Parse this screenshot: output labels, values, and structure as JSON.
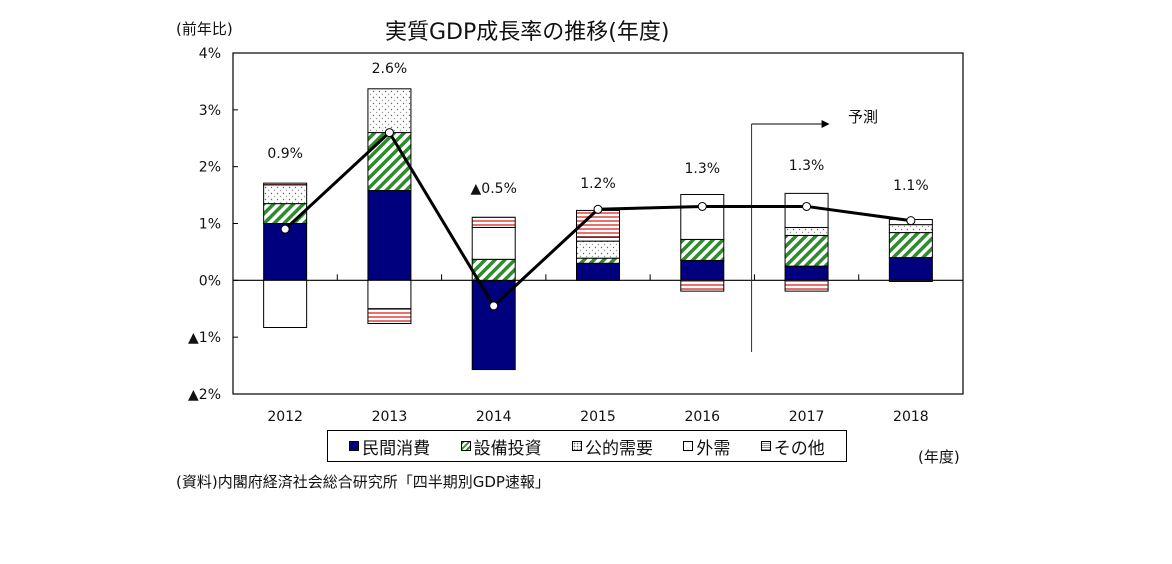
{
  "chart_data": {
    "type": "bar",
    "stacked": true,
    "title": "実質GDP成長率の推移(年度)",
    "ylabel": "(前年比)",
    "xlabel": "(年度)",
    "ylim": [
      -2,
      4
    ],
    "yticks": [
      4,
      3,
      2,
      1,
      0,
      -1,
      -2
    ],
    "ytick_labels": [
      "4%",
      "3%",
      "2%",
      "1%",
      "0%",
      "▲1%",
      "▲2%"
    ],
    "categories": [
      "2012",
      "2013",
      "2014",
      "2015",
      "2016",
      "2017",
      "2018"
    ],
    "series": [
      {
        "name": "民間消費",
        "key": "consumption",
        "color": "#00007f",
        "pattern": "solid",
        "values": [
          1.0,
          1.58,
          -1.57,
          0.3,
          0.35,
          0.25,
          0.4
        ]
      },
      {
        "name": "設備投資",
        "key": "investment",
        "color": "#2e8b2e",
        "pattern": "diagonal",
        "values": [
          0.35,
          1.02,
          0.37,
          0.09,
          0.37,
          0.54,
          0.44
        ]
      },
      {
        "name": "公的需要",
        "key": "public",
        "color": "#555555",
        "pattern": "dots",
        "values": [
          0.33,
          0.77,
          0.0,
          0.3,
          0.0,
          0.14,
          0.14
        ]
      },
      {
        "name": "外需",
        "key": "external",
        "color": "#ffffff",
        "pattern": "blank",
        "values": [
          -0.83,
          -0.5,
          0.56,
          0.07,
          0.79,
          0.6,
          0.09
        ]
      },
      {
        "name": "その他",
        "key": "other",
        "color": "#e8706f",
        "pattern": "horizontal",
        "values": [
          0.03,
          -0.26,
          0.18,
          0.47,
          -0.19,
          -0.19,
          -0.02
        ]
      }
    ],
    "line": {
      "name": "実質GDP成長率",
      "values": [
        0.9,
        2.6,
        -0.45,
        1.25,
        1.3,
        1.3,
        1.05
      ],
      "labels": [
        "0.9%",
        "2.6%",
        "▲0.5%",
        "1.2%",
        "1.3%",
        "1.3%",
        "1.1%"
      ]
    },
    "forecast": {
      "label": "予測",
      "from_category": "2017"
    },
    "legend_placement": "bottom",
    "grid": false
  },
  "header": {
    "title": "実質GDP成長率の推移(年度)",
    "y_unit": "(前年比)",
    "x_unit": "(年度)"
  },
  "legend": [
    {
      "label": "民間消費",
      "swatch": "consumption"
    },
    {
      "label": "設備投資",
      "swatch": "investment"
    },
    {
      "label": "公的需要",
      "swatch": "public"
    },
    {
      "label": "外需",
      "swatch": "external"
    },
    {
      "label": "その他",
      "swatch": "other"
    }
  ],
  "footer": {
    "source": "(資料)内閣府経済社会総合研究所「四半期別GDP速報」"
  },
  "forecast_label": "予測"
}
